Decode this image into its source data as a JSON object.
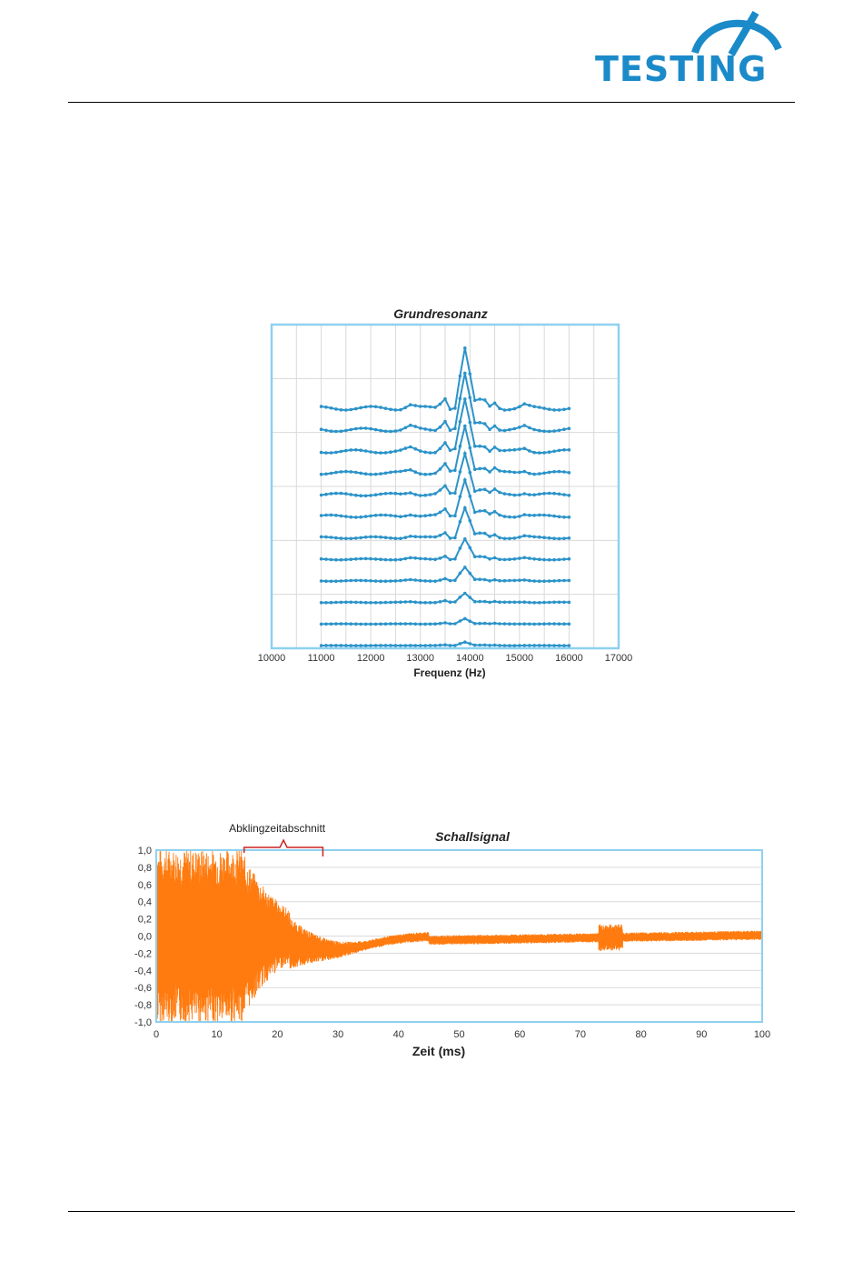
{
  "header": {
    "logo_text": "TESTING",
    "brand_color": "#1a8ac9"
  },
  "chart_data": [
    {
      "type": "line",
      "title": "Grundresonanz",
      "xlabel": "Frequenz (Hz)",
      "ylabel": "",
      "xlim": [
        10000,
        17000
      ],
      "x_ticks": [
        "10000",
        "11000",
        "12000",
        "13000",
        "14000",
        "15000",
        "16000",
        "17000"
      ],
      "series_count": 12,
      "series_x_range": [
        11000,
        16000
      ],
      "peak_x": 13900,
      "peak_relative_heights": [
        1.0,
        0.92,
        0.85,
        0.78,
        0.7,
        0.62,
        0.5,
        0.33,
        0.22,
        0.15,
        0.09,
        0.06
      ],
      "legend": "none",
      "grid": true,
      "color": "#2b93c9"
    },
    {
      "type": "line",
      "title": "Schallsignal",
      "xlabel": "Zeit (ms)",
      "ylabel": "",
      "xlim": [
        0,
        100
      ],
      "ylim": [
        -1.0,
        1.0
      ],
      "x_ticks": [
        "0",
        "10",
        "20",
        "30",
        "40",
        "50",
        "60",
        "70",
        "80",
        "90",
        "100"
      ],
      "y_ticks": [
        "1,0",
        "0,8",
        "0,6",
        "0,4",
        "0,2",
        "0,0",
        "-0,2",
        "-0,4",
        "-0,6",
        "-0,8",
        "-1,0"
      ],
      "legend": "none",
      "grid": true,
      "color": "#ff7b0f",
      "annotation": {
        "text": "Abklingzeitabschnitt",
        "x_start": 14.5,
        "x_end": 27.5,
        "color": "#cc2222"
      }
    }
  ]
}
